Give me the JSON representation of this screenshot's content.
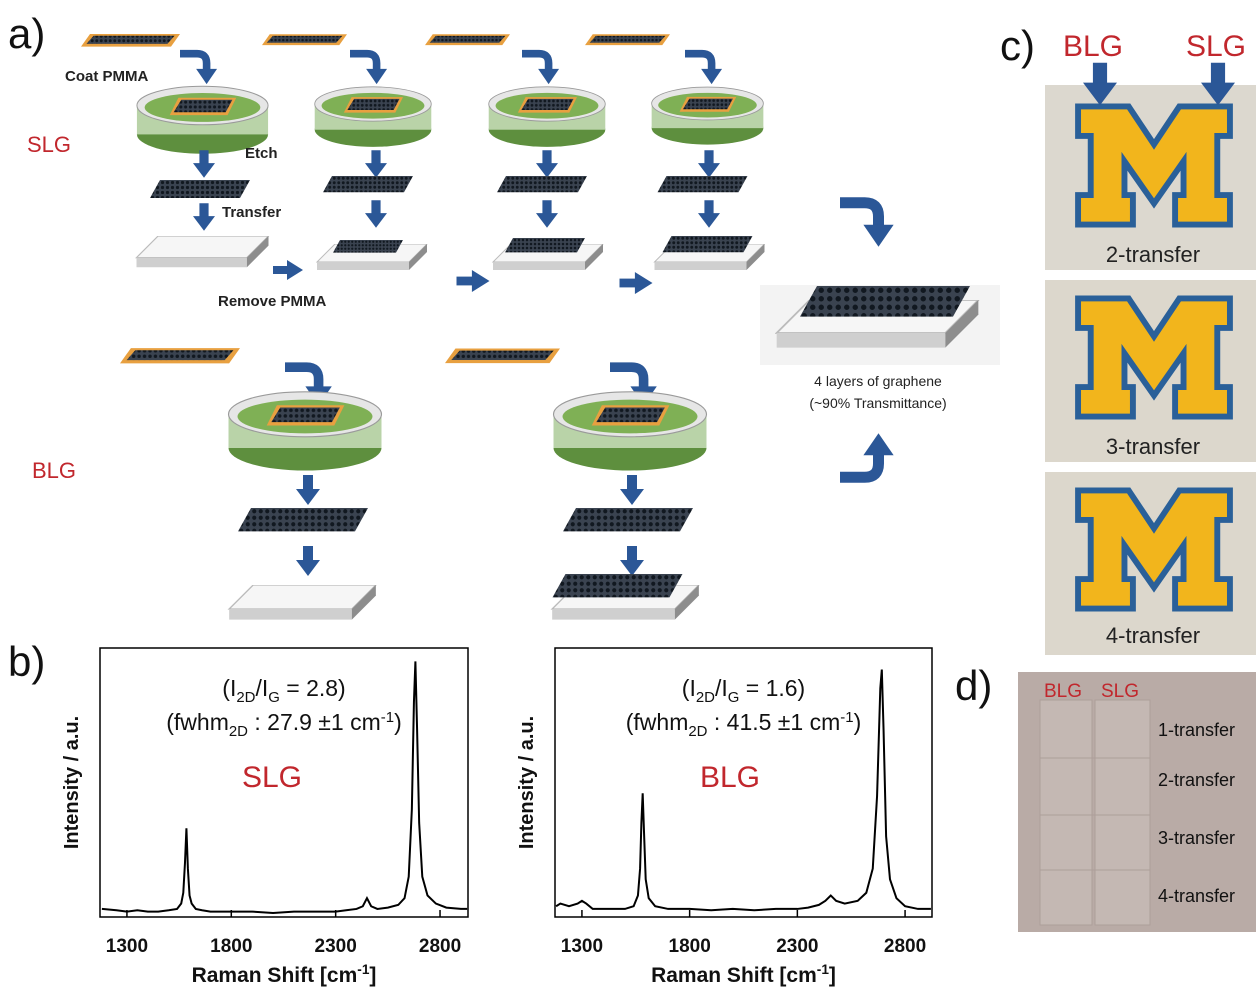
{
  "panel_labels": [
    "a)",
    "b)",
    "c)",
    "d)"
  ],
  "diagram": {
    "rows": [
      "SLG",
      "BLG"
    ],
    "steps": [
      "Coat PMMA",
      "Etch",
      "Transfer",
      "Remove PMMA"
    ],
    "result": [
      "4 layers of graphene",
      "(~90% Transmittance)"
    ]
  },
  "panel_c": {
    "columns": [
      "BLG",
      "SLG"
    ],
    "captions": [
      "2-transfer",
      "3-transfer",
      "4-transfer"
    ]
  },
  "panel_d": {
    "columns": [
      "BLG",
      "SLG"
    ],
    "rows": [
      "1-transfer",
      "2-transfer",
      "3-transfer",
      "4-transfer"
    ]
  },
  "chart_data": [
    {
      "type": "line",
      "annotation": [
        [
          "(I",
          "2D",
          "/I",
          "G",
          " = 2.8)"
        ],
        [
          "(fwhm",
          "2D",
          " : 27.9 ±1 cm",
          "-1",
          ")"
        ]
      ],
      "label": "SLG",
      "label_color": "#c1272d",
      "color": "#000000",
      "xlabel": [
        "Raman Shift  [cm",
        "-1",
        "]"
      ],
      "ylabel": "Intensity / a.u.",
      "xlim": [
        1171,
        2934
      ],
      "xticks": [
        1300,
        1800,
        2300,
        2800
      ],
      "ylim": [
        0,
        100
      ],
      "x": [
        1180,
        1250,
        1300,
        1350,
        1400,
        1450,
        1500,
        1540,
        1560,
        1570,
        1578,
        1585,
        1592,
        1600,
        1610,
        1630,
        1660,
        1700,
        1800,
        1900,
        2000,
        2100,
        2200,
        2300,
        2350,
        2400,
        2430,
        2450,
        2470,
        2500,
        2550,
        2600,
        2630,
        2650,
        2665,
        2675,
        2682,
        2690,
        2700,
        2715,
        2740,
        2780,
        2830,
        2900,
        2930
      ],
      "values": [
        3,
        2.5,
        2,
        2.5,
        2,
        2,
        2.5,
        3,
        5,
        9,
        20,
        33,
        18,
        8,
        5,
        3,
        2.5,
        2,
        2,
        2,
        1.5,
        2,
        2,
        2,
        2.5,
        3,
        4,
        7,
        4,
        3,
        3.5,
        4.5,
        7,
        15,
        40,
        80,
        95,
        70,
        35,
        15,
        8,
        5,
        3.5,
        3,
        3
      ]
    },
    {
      "type": "line",
      "annotation": [
        [
          "(I",
          "2D",
          "/I",
          "G",
          " = 1.6)"
        ],
        [
          "(fwhm",
          "2D",
          " : 41.5 ±1 cm",
          "-1",
          ")"
        ]
      ],
      "label": "BLG",
      "label_color": "#c1272d",
      "color": "#000000",
      "xlabel": [
        "Raman Shift  [cm",
        "-1",
        "]"
      ],
      "ylabel": "Intensity / a.u.",
      "xlim": [
        1175,
        2925
      ],
      "xticks": [
        1300,
        1800,
        2300,
        2800
      ],
      "ylim": [
        0,
        100
      ],
      "x": [
        1180,
        1200,
        1240,
        1280,
        1300,
        1320,
        1350,
        1400,
        1450,
        1500,
        1540,
        1560,
        1570,
        1576,
        1582,
        1588,
        1596,
        1610,
        1640,
        1700,
        1800,
        1900,
        2000,
        2100,
        2200,
        2300,
        2350,
        2400,
        2430,
        2455,
        2480,
        2520,
        2580,
        2620,
        2650,
        2670,
        2685,
        2692,
        2700,
        2712,
        2730,
        2760,
        2800,
        2860,
        2920
      ],
      "values": [
        4,
        5,
        4,
        5,
        6,
        5,
        3,
        3,
        3,
        3,
        4,
        8,
        18,
        35,
        46,
        32,
        14,
        7,
        4,
        3,
        3,
        2.5,
        3,
        2.5,
        3,
        3,
        3.5,
        4.5,
        6,
        8,
        6,
        5,
        6,
        9,
        18,
        45,
        85,
        92,
        70,
        30,
        14,
        7,
        4,
        3,
        3
      ]
    }
  ]
}
